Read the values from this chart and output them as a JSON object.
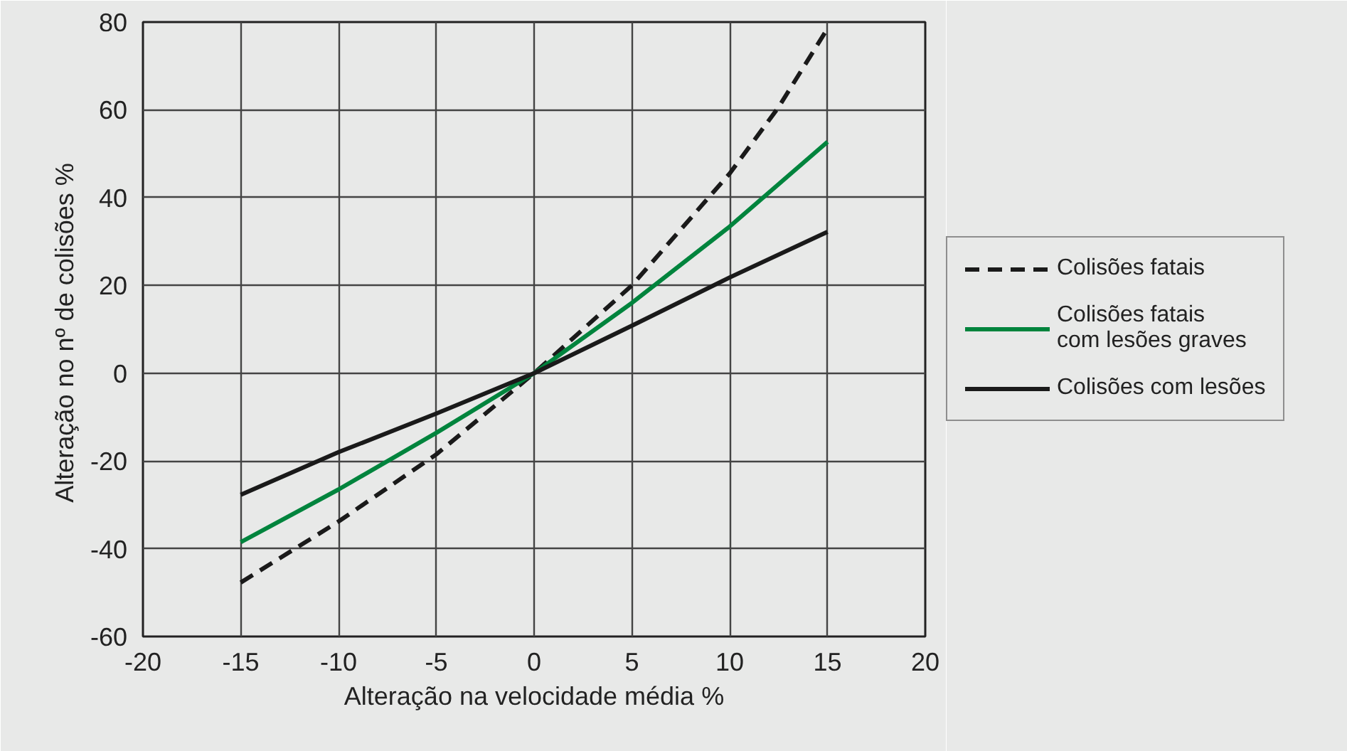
{
  "chart_data": {
    "type": "line",
    "xlabel": "Alteração na velocidade média %",
    "ylabel": "Alteração no nº de colisões  %",
    "x": [
      -15,
      -10,
      -5,
      0,
      5,
      10,
      12.5,
      15
    ],
    "series": [
      {
        "name": "Colisões fatais",
        "color": "#1a1a1a",
        "line_style": "dashed",
        "values": [
          -47.7,
          -33.8,
          -18.5,
          0,
          20,
          45.5,
          60.6,
          78.5
        ]
      },
      {
        "name": "Colisões fatais\ncom lesões graves",
        "color": "#00843d",
        "line_style": "solid",
        "values": [
          -38.5,
          -26.5,
          -13.6,
          0,
          16,
          33.4,
          null,
          52.7
        ]
      },
      {
        "name": "Colisões com lesões",
        "color": "#1a1a1a",
        "line_style": "solid",
        "values": [
          -27.7,
          -18,
          -9.2,
          0,
          10.8,
          21.8,
          null,
          32.2
        ]
      }
    ],
    "xlim": [
      -20,
      20
    ],
    "xticks": [
      -20,
      -15,
      -10,
      -5,
      0,
      5,
      10,
      15,
      20
    ],
    "ylim": [
      -60,
      80
    ],
    "yticks": [
      -60,
      -40,
      -20,
      0,
      20,
      40,
      60,
      80
    ],
    "grid": true,
    "legend": "right",
    "marker": "none"
  }
}
